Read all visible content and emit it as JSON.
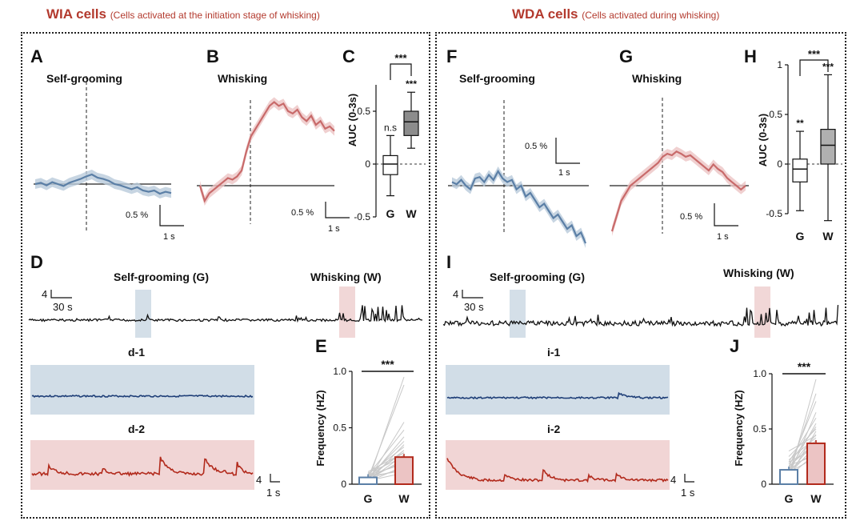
{
  "left_group": {
    "title": "WIA cells",
    "subtitle": "(Cells activated at the initiation stage of whisking)",
    "panels": {
      "A": {
        "letter": "A",
        "label": "Self-grooming"
      },
      "B": {
        "letter": "B",
        "label": "Whisking"
      },
      "C": {
        "letter": "C"
      },
      "D": {
        "letter": "D",
        "label_g": "Self-grooming (G)",
        "label_w": "Whisking (W)"
      },
      "d1": {
        "label": "d-1"
      },
      "d2": {
        "label": "d-2"
      },
      "E": {
        "letter": "E"
      }
    },
    "scalebars": {
      "A": {
        "y": "0.5 %",
        "x": "1 s"
      },
      "B": {
        "y": "0.5 %",
        "x": "1 s"
      },
      "D": {
        "y": "4",
        "x": "30 s"
      },
      "d": {
        "y": "4",
        "x": "1 s"
      }
    }
  },
  "right_group": {
    "title": "WDA cells",
    "subtitle": "(Cells activated during whisking)",
    "panels": {
      "F": {
        "letter": "F",
        "label": "Self-grooming"
      },
      "G": {
        "letter": "G",
        "label": "Whisking"
      },
      "H": {
        "letter": "H"
      },
      "I": {
        "letter": "I",
        "label_g": "Self-grooming (G)",
        "label_w": "Whisking (W)"
      },
      "i1": {
        "label": "i-1"
      },
      "i2": {
        "label": "i-2"
      },
      "J": {
        "letter": "J"
      }
    },
    "scalebars": {
      "F": {
        "y": "0.5 %",
        "x": "1 s"
      },
      "G": {
        "y": "0.5 %",
        "x": "1 s"
      },
      "I": {
        "y": "4",
        "x": "30 s"
      },
      "i": {
        "y": "4",
        "x": "1 s"
      }
    }
  },
  "colors": {
    "title": "#b33a2e",
    "grooming": "#5b7fa6",
    "grooming_shade": "#b9cadb",
    "whisking": "#c86a6a",
    "whisking_shade": "#ecc4c4",
    "blue_bg": "#cfdbe6",
    "red_bg": "#f0d3d3",
    "dark_blue": "#1f3f78",
    "dark_red": "#b22a1c"
  },
  "chart_data": [
    {
      "id": "C",
      "type": "box",
      "ylabel": "AUC (0-3s)",
      "categories": [
        "G",
        "W"
      ],
      "ylim": [
        -0.5,
        0.75
      ],
      "yticks": [
        {
          "v": 0.5,
          "t": "0.5"
        },
        {
          "v": 0,
          "t": "0"
        },
        {
          "v": -0.5,
          "t": "-0.5"
        }
      ],
      "boxes": [
        {
          "cat": "G",
          "min": -0.3,
          "q1": -0.1,
          "median": 0.0,
          "q3": 0.08,
          "max": 0.27,
          "fill": "#ffffff",
          "annotation": "n.s"
        },
        {
          "cat": "W",
          "min": 0.15,
          "q1": 0.27,
          "median": 0.4,
          "q3": 0.5,
          "max": 0.68,
          "fill": "#8c8c8c",
          "annotation": "***"
        }
      ],
      "bracket": "***"
    },
    {
      "id": "H",
      "type": "box",
      "ylabel": "AUC (0-3s)",
      "categories": [
        "G",
        "W"
      ],
      "ylim": [
        -0.5,
        1.0
      ],
      "yticks": [
        {
          "v": 1,
          "t": "1"
        },
        {
          "v": 0.5,
          "t": "0.5"
        },
        {
          "v": 0,
          "t": "0"
        },
        {
          "v": -0.5,
          "t": "-0.5"
        }
      ],
      "boxes": [
        {
          "cat": "G",
          "min": -0.47,
          "q1": -0.18,
          "median": -0.05,
          "q3": 0.05,
          "max": 0.33,
          "fill": "#ffffff",
          "annotation": "**"
        },
        {
          "cat": "W",
          "min": -0.57,
          "q1": 0.0,
          "median": 0.19,
          "q3": 0.35,
          "max": 0.9,
          "fill": "#b0b0b0",
          "annotation": "***"
        }
      ],
      "bracket": "***"
    },
    {
      "id": "E",
      "type": "bar",
      "ylabel": "Frequency (HZ)",
      "categories": [
        "G",
        "W"
      ],
      "values": [
        0.06,
        0.24
      ],
      "ylim": [
        0,
        1.0
      ],
      "yticks": [
        {
          "v": 1,
          "t": "1.0"
        },
        {
          "v": 0.5,
          "t": "0.5"
        },
        {
          "v": 0,
          "t": "0"
        }
      ],
      "bracket": "***",
      "pairs": [
        [
          0.02,
          0.95
        ],
        [
          0.05,
          0.88
        ],
        [
          0.03,
          0.55
        ],
        [
          0.08,
          0.48
        ],
        [
          0.04,
          0.42
        ],
        [
          0.06,
          0.38
        ],
        [
          0.02,
          0.35
        ],
        [
          0.09,
          0.33
        ],
        [
          0.05,
          0.3
        ],
        [
          0.07,
          0.28
        ],
        [
          0.03,
          0.26
        ],
        [
          0.1,
          0.24
        ],
        [
          0.04,
          0.22
        ],
        [
          0.06,
          0.2
        ],
        [
          0.08,
          0.18
        ],
        [
          0.02,
          0.16
        ],
        [
          0.05,
          0.14
        ],
        [
          0.07,
          0.12
        ],
        [
          0.03,
          0.1
        ],
        [
          0.11,
          0.28
        ]
      ]
    },
    {
      "id": "J",
      "type": "bar",
      "ylabel": "Frequency (HZ)",
      "categories": [
        "G",
        "W"
      ],
      "values": [
        0.13,
        0.37
      ],
      "ylim": [
        0,
        1.0
      ],
      "yticks": [
        {
          "v": 1,
          "t": "1.0"
        },
        {
          "v": 0.5,
          "t": "0.5"
        },
        {
          "v": 0,
          "t": "0"
        }
      ],
      "bracket": "***",
      "pairs": [
        [
          0.05,
          0.95
        ],
        [
          0.1,
          0.82
        ],
        [
          0.15,
          0.75
        ],
        [
          0.08,
          0.65
        ],
        [
          0.2,
          0.6
        ],
        [
          0.12,
          0.55
        ],
        [
          0.18,
          0.52
        ],
        [
          0.06,
          0.48
        ],
        [
          0.14,
          0.45
        ],
        [
          0.22,
          0.42
        ],
        [
          0.1,
          0.4
        ],
        [
          0.16,
          0.38
        ],
        [
          0.09,
          0.35
        ],
        [
          0.2,
          0.33
        ],
        [
          0.13,
          0.3
        ],
        [
          0.07,
          0.28
        ],
        [
          0.17,
          0.26
        ],
        [
          0.11,
          0.24
        ],
        [
          0.25,
          0.5
        ],
        [
          0.3,
          0.44
        ]
      ]
    },
    {
      "id": "A",
      "type": "line",
      "series": [
        {
          "name": "Self-grooming",
          "values": [
            0.0,
            0.02,
            -0.02,
            0.03,
            0.0,
            -0.03,
            0.02,
            0.05,
            0.08,
            0.12,
            0.15,
            0.1,
            0.08,
            0.05,
            0.0,
            -0.02,
            -0.05,
            -0.08,
            -0.05,
            -0.1,
            -0.12,
            -0.1,
            -0.15,
            -0.12,
            -0.14
          ]
        }
      ],
      "event_index": 8
    },
    {
      "id": "B",
      "type": "line",
      "series": [
        {
          "name": "Whisking",
          "values": [
            0.0,
            -0.2,
            -0.1,
            -0.05,
            0.0,
            0.05,
            0.1,
            0.08,
            0.12,
            0.2,
            0.45,
            0.65,
            0.75,
            0.85,
            0.95,
            1.05,
            1.1,
            1.05,
            1.08,
            0.98,
            0.95,
            1.0,
            0.9,
            0.85,
            0.92,
            0.8,
            0.85,
            0.75,
            0.78,
            0.72
          ]
        }
      ],
      "event_index": 8
    },
    {
      "id": "F",
      "type": "line",
      "series": [
        {
          "name": "Self-grooming",
          "values": [
            0.05,
            0.02,
            0.08,
            0.0,
            -0.05,
            0.1,
            0.12,
            0.05,
            0.15,
            0.08,
            0.2,
            0.1,
            0.05,
            0.08,
            -0.05,
            0.0,
            -0.15,
            -0.1,
            -0.2,
            -0.3,
            -0.25,
            -0.35,
            -0.45,
            -0.4,
            -0.5,
            -0.6,
            -0.55,
            -0.7,
            -0.65,
            -0.8
          ]
        }
      ],
      "event_index": 8
    },
    {
      "id": "G",
      "type": "line",
      "series": [
        {
          "name": "Whisking",
          "values": [
            -0.6,
            -0.4,
            -0.2,
            -0.1,
            0.0,
            0.05,
            0.1,
            0.15,
            0.2,
            0.25,
            0.3,
            0.38,
            0.42,
            0.4,
            0.45,
            0.42,
            0.38,
            0.4,
            0.35,
            0.3,
            0.25,
            0.2,
            0.28,
            0.22,
            0.18,
            0.1,
            0.05,
            0.0,
            -0.05,
            0.0
          ]
        }
      ],
      "event_index": 8
    }
  ]
}
